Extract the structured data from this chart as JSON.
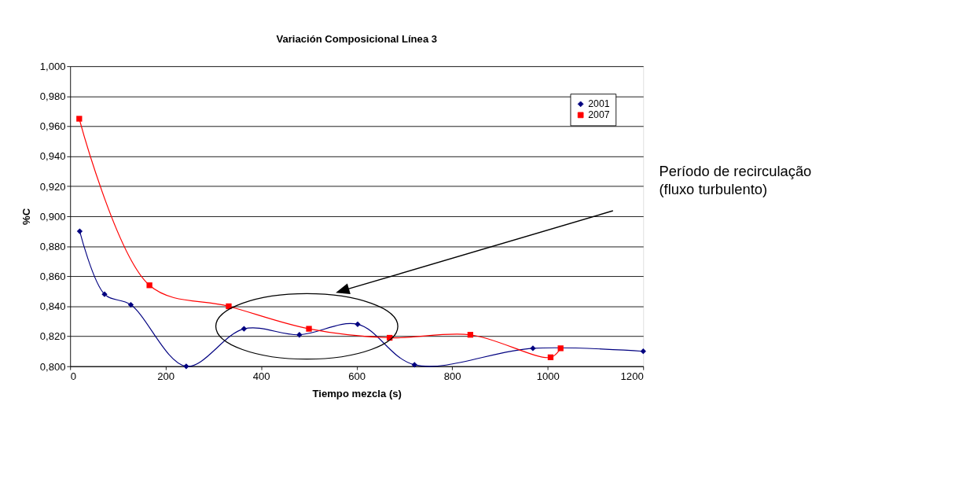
{
  "chart_data": {
    "type": "line",
    "title": "Variación Composicional Línea 3",
    "xlabel": "Tiempo mezcla (s)",
    "ylabel": "%C",
    "xlim": [
      0,
      1200
    ],
    "xticks": [
      0,
      200,
      400,
      600,
      800,
      1000,
      1200
    ],
    "ylim": [
      0.8,
      1.0
    ],
    "yticks": [
      {
        "value": 0.8,
        "label": "0,800"
      },
      {
        "value": 0.82,
        "label": "0,820"
      },
      {
        "value": 0.84,
        "label": "0,840"
      },
      {
        "value": 0.86,
        "label": "0,860"
      },
      {
        "value": 0.88,
        "label": "0,880"
      },
      {
        "value": 0.9,
        "label": "0,900"
      },
      {
        "value": 0.92,
        "label": "0,920"
      },
      {
        "value": 0.94,
        "label": "0,940"
      },
      {
        "value": 0.96,
        "label": "0,960"
      },
      {
        "value": 0.98,
        "label": "0,980"
      },
      {
        "value": 1.0,
        "label": "1,000"
      }
    ],
    "grid": "y",
    "legend": "top right",
    "series": [
      {
        "name": "2001",
        "color": "#000080",
        "marker": "diamond",
        "x": [
          20,
          72,
          127,
          243,
          364,
          480,
          602,
          721,
          969,
          1200
        ],
        "values": [
          0.89,
          0.848,
          0.841,
          0.8,
          0.825,
          0.821,
          0.828,
          0.801,
          0.812,
          0.81
        ]
      },
      {
        "name": "2007",
        "color": "#ff0000",
        "marker": "square",
        "x": [
          19,
          166,
          332,
          500,
          669,
          838,
          1006,
          1027
        ],
        "values": [
          0.965,
          0.854,
          0.84,
          0.825,
          0.819,
          0.821,
          0.806,
          0.812
        ]
      }
    ],
    "annotations": [
      "Período de recirculação\n(fluxo turbulento)"
    ]
  }
}
